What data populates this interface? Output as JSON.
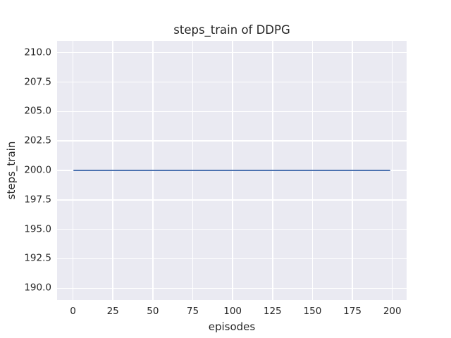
{
  "figure": {
    "background": "#FFFFFF",
    "text_color": "#262626"
  },
  "chart_data": {
    "type": "line",
    "title": "steps_train of DDPG",
    "xlabel": "episodes",
    "ylabel": "steps_train",
    "xlim": [
      -9.95,
      208.95
    ],
    "ylim": [
      189.0,
      211.0
    ],
    "xticks": [
      0,
      25,
      50,
      75,
      100,
      125,
      150,
      175,
      200
    ],
    "xtick_labels": [
      "0",
      "25",
      "50",
      "75",
      "100",
      "125",
      "150",
      "175",
      "200"
    ],
    "yticks": [
      190.0,
      192.5,
      195.0,
      197.5,
      200.0,
      202.5,
      205.0,
      207.5,
      210.0
    ],
    "ytick_labels": [
      "190.0",
      "192.5",
      "195.0",
      "197.5",
      "200.0",
      "202.5",
      "205.0",
      "207.5",
      "210.0"
    ],
    "grid": true,
    "legend": null,
    "plot_background": "#EAEAF2",
    "grid_color": "#FFFFFF",
    "series": [
      {
        "name": "steps_train",
        "color": "#4C72B0",
        "x": [
          0,
          199
        ],
        "y": [
          200,
          200
        ],
        "note": "constant value 200 for every episode from 0 to 199"
      }
    ]
  }
}
